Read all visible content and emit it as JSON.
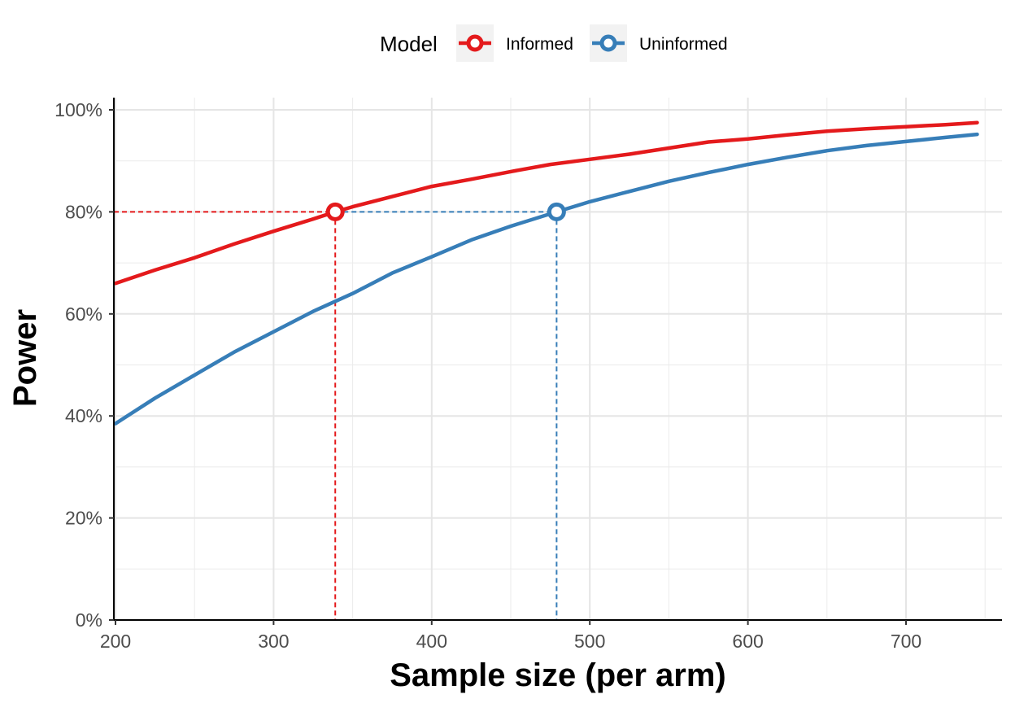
{
  "chart_data": {
    "type": "line",
    "xlabel": "Sample size (per arm)",
    "ylabel": "Power",
    "xlim": [
      200,
      760
    ],
    "ylim": [
      0,
      1
    ],
    "x_ticks": [
      200,
      300,
      400,
      500,
      600,
      700
    ],
    "x_tick_labels": [
      "200",
      "300",
      "400",
      "500",
      "600",
      "700"
    ],
    "y_ticks": [
      0,
      0.2,
      0.4,
      0.6,
      0.8,
      1.0
    ],
    "y_tick_labels": [
      "0%",
      "20%",
      "40%",
      "60%",
      "80%",
      "100%"
    ],
    "grid": true,
    "legend": {
      "title": "Model",
      "position": "top"
    },
    "target_power": 0.8,
    "series": [
      {
        "name": "Informed",
        "color": "#e41a1c",
        "x": [
          200,
          225,
          250,
          275,
          300,
          325,
          339,
          350,
          375,
          400,
          425,
          450,
          475,
          500,
          525,
          550,
          575,
          600,
          625,
          650,
          675,
          700,
          725,
          745
        ],
        "y": [
          0.66,
          0.686,
          0.71,
          0.737,
          0.762,
          0.786,
          0.8,
          0.81,
          0.83,
          0.85,
          0.864,
          0.879,
          0.893,
          0.903,
          0.913,
          0.925,
          0.937,
          0.943,
          0.951,
          0.958,
          0.963,
          0.967,
          0.971,
          0.975
        ],
        "highlight": {
          "x": 339,
          "y": 0.8
        }
      },
      {
        "name": "Uninformed",
        "color": "#377eb8",
        "x": [
          200,
          225,
          250,
          275,
          300,
          325,
          350,
          375,
          400,
          425,
          450,
          479,
          500,
          525,
          550,
          575,
          600,
          625,
          650,
          675,
          700,
          725,
          745
        ],
        "y": [
          0.385,
          0.435,
          0.48,
          0.525,
          0.565,
          0.605,
          0.64,
          0.68,
          0.712,
          0.745,
          0.772,
          0.8,
          0.82,
          0.84,
          0.86,
          0.877,
          0.893,
          0.907,
          0.92,
          0.93,
          0.938,
          0.946,
          0.952
        ],
        "highlight": {
          "x": 479,
          "y": 0.8
        }
      }
    ]
  }
}
